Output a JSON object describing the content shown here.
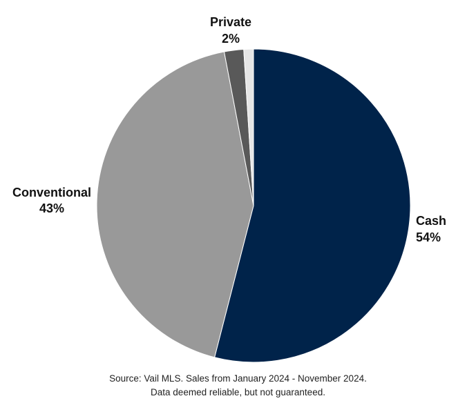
{
  "chart_data": {
    "type": "pie",
    "slices": [
      {
        "label": "Cash",
        "percent_label": "54%",
        "value": 54,
        "color": "#00234a",
        "show_label": true
      },
      {
        "label": "Conventional",
        "percent_label": "43%",
        "value": 43,
        "color": "#999999",
        "show_label": true
      },
      {
        "label": "Private",
        "percent_label": "2%",
        "value": 2,
        "color": "#595959",
        "show_label": true
      },
      {
        "label": "",
        "percent_label": "",
        "value": 1,
        "color": "#e6e6e6",
        "show_label": false
      }
    ],
    "start": "12 o'clock",
    "direction": "clockwise"
  },
  "footer": {
    "line1": "Source: Vail MLS. Sales from January 2024 - November 2024.",
    "line2": "Data deemed reliable, but not guaranteed."
  }
}
